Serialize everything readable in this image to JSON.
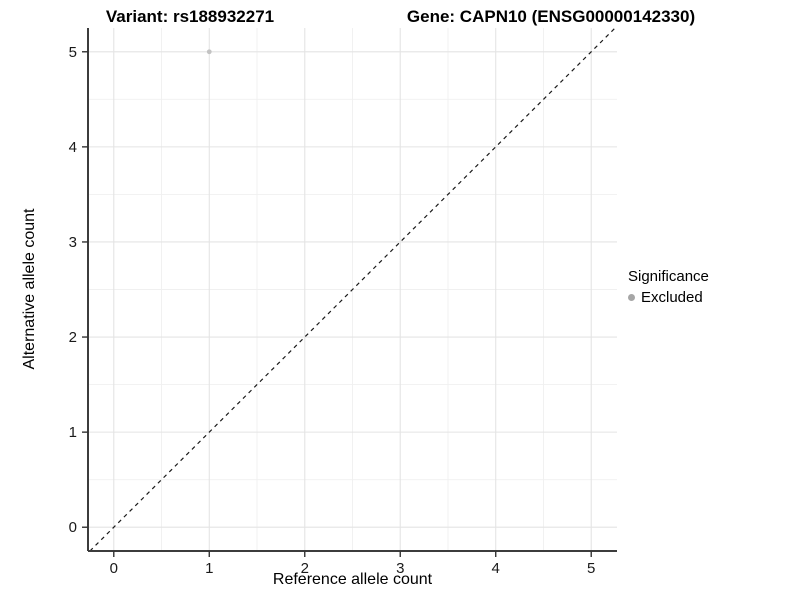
{
  "chart_data": {
    "type": "scatter",
    "title_left": "Variant: rs188932271",
    "title_right": "Gene: CAPN10 (ENSG00000142330)",
    "xlabel": "Reference allele count",
    "ylabel": "Alternative allele count",
    "xlim": [
      -0.27,
      5.27
    ],
    "ylim": [
      -0.25,
      5.25
    ],
    "x_ticks": [
      0,
      1,
      2,
      3,
      4,
      5
    ],
    "y_ticks": [
      0,
      1,
      2,
      3,
      4,
      5
    ],
    "grid": true,
    "minor_grid": true,
    "reference_line": {
      "type": "identity",
      "style": "dashed",
      "color": "#1a1a1a"
    },
    "series": [
      {
        "name": "Excluded",
        "color": "#c3c3c3",
        "points": [
          {
            "x": 1,
            "y": 5
          }
        ]
      }
    ],
    "legend": {
      "title": "Significance",
      "position": "right",
      "items": [
        {
          "label": "Excluded",
          "color": "#a6a6a6"
        }
      ]
    }
  },
  "colors": {
    "background": "#ffffff",
    "grid_major": "#e4e4e4",
    "grid_minor": "#f0f0f0",
    "axis_line": "#3c3c3c",
    "tick_mark": "#333333",
    "tick_text": "#1a1a1a"
  }
}
